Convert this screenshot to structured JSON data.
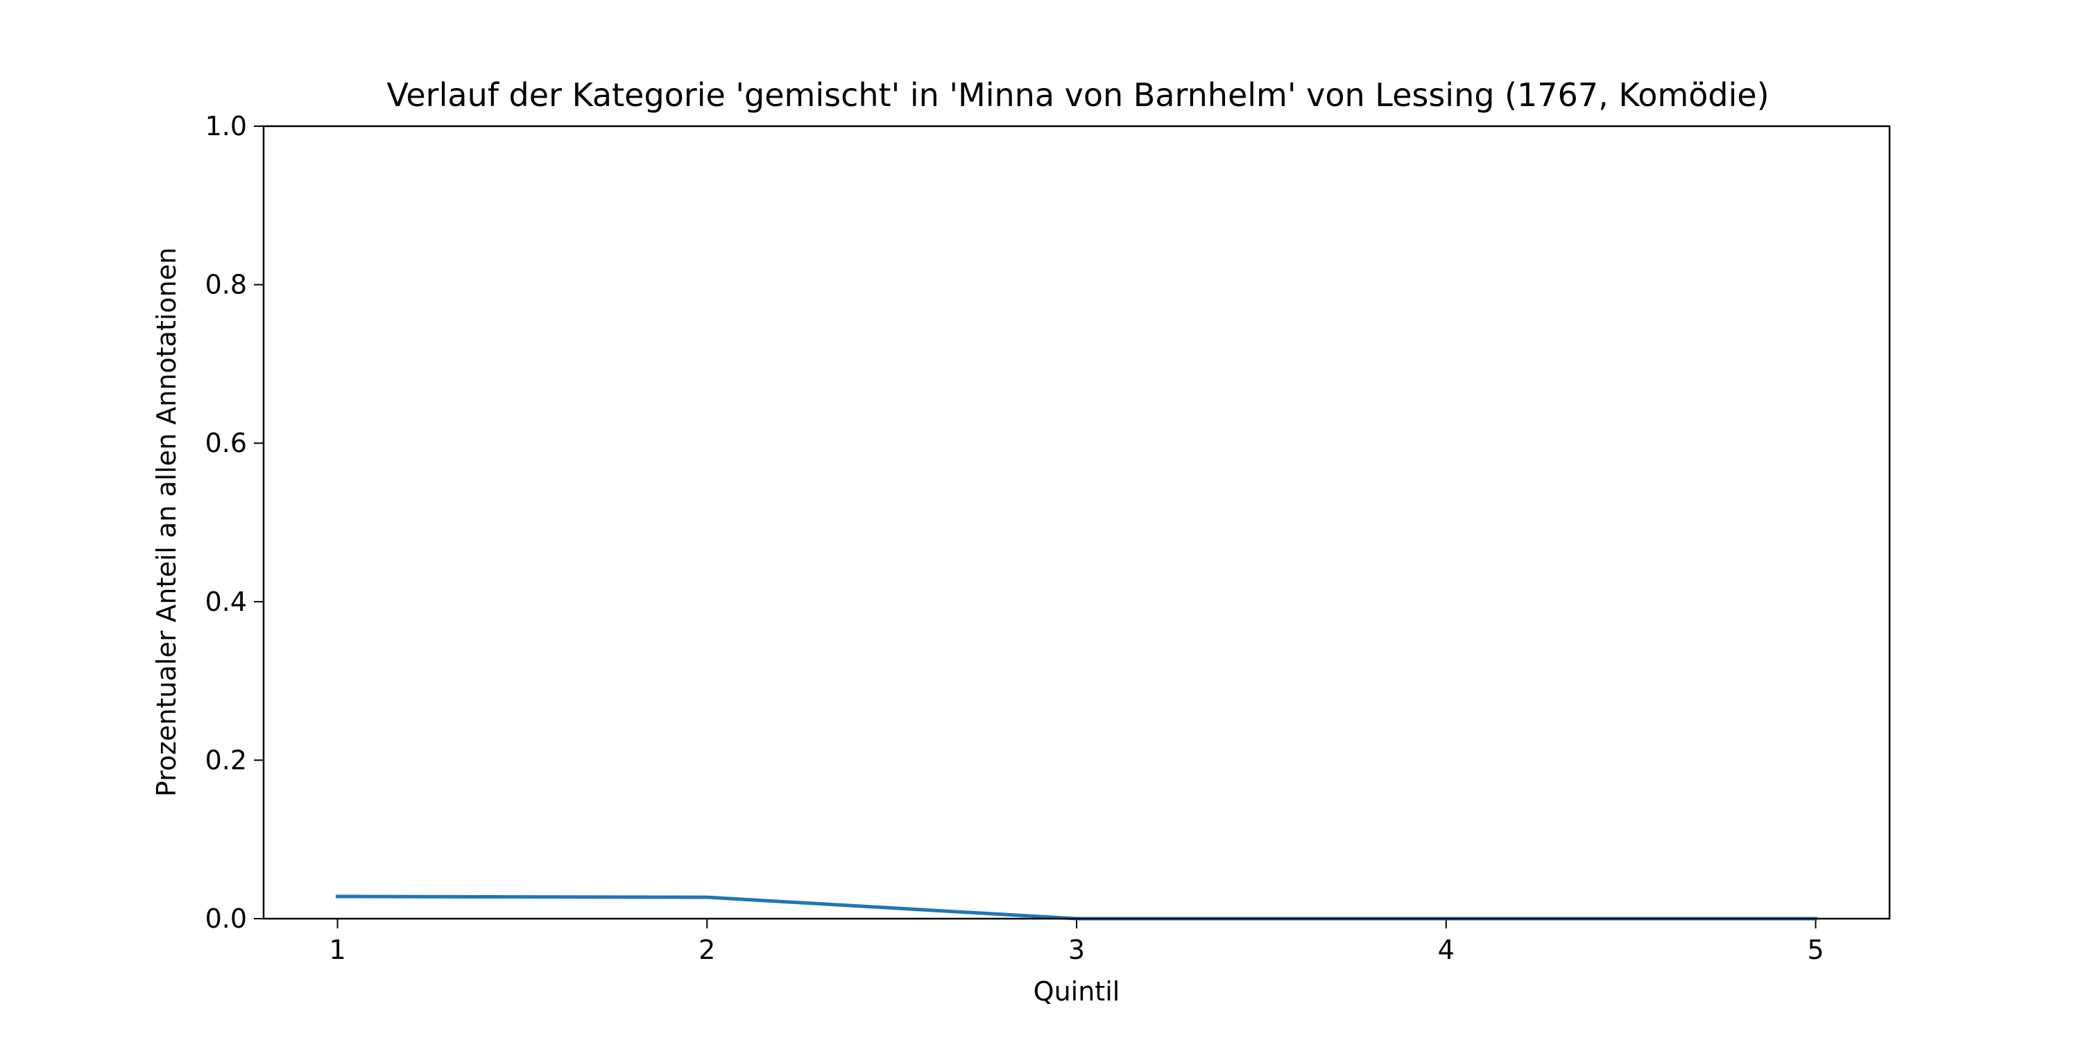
{
  "chart_data": {
    "type": "line",
    "title": "Verlauf der Kategorie 'gemischt' in 'Minna von Barnhelm' von Lessing (1767, Komödie)",
    "xlabel": "Quintil",
    "ylabel": "Prozentualer Anteil an allen Annotationen",
    "x": [
      1,
      2,
      3,
      4,
      5
    ],
    "x_tick_labels": [
      "1",
      "2",
      "3",
      "4",
      "5"
    ],
    "y_tick_values": [
      0.0,
      0.2,
      0.4,
      0.6,
      0.8,
      1.0
    ],
    "y_tick_labels": [
      "0.0",
      "0.2",
      "0.4",
      "0.6",
      "0.8",
      "1.0"
    ],
    "xlim": [
      0.8,
      5.2
    ],
    "ylim": [
      0.0,
      1.0
    ],
    "grid": false,
    "series": [
      {
        "values": [
          0.028,
          0.027,
          0.0,
          0.0,
          0.0
        ],
        "color": "#1f77b4"
      }
    ]
  }
}
